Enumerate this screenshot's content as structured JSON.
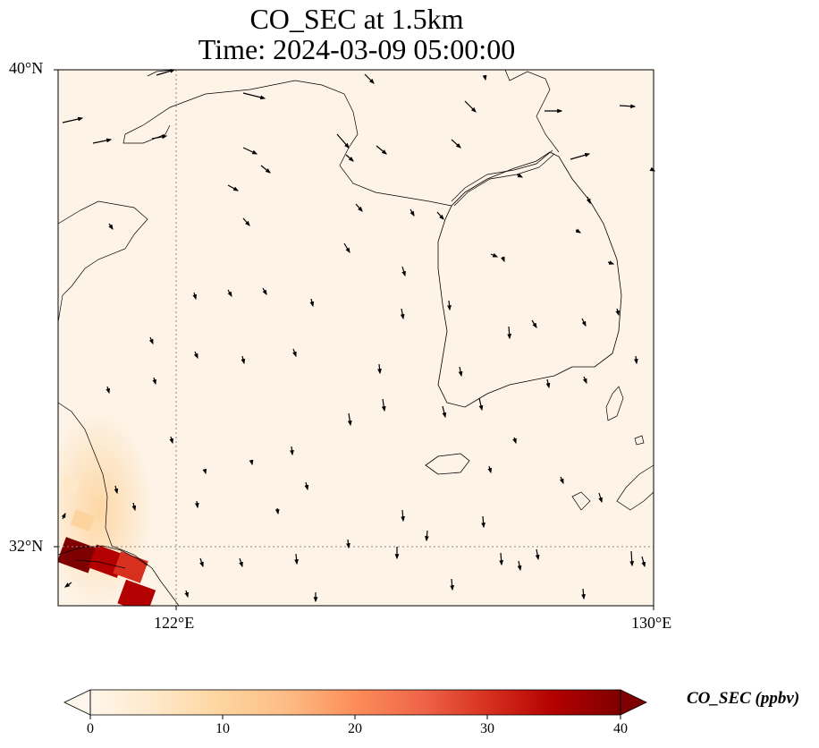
{
  "title": {
    "line1": "CO_SEC at 1.5km",
    "line2": "Time: 2024-03-09 05:00:00"
  },
  "axes": {
    "lat_labels": [
      "40°N",
      "32°N"
    ],
    "lon_labels": [
      "122°E",
      "130°E"
    ],
    "lon_range": [
      120,
      130
    ],
    "lat_range": [
      31,
      40
    ],
    "gridlines": "dotted grey at 122°E and 32°N"
  },
  "colorbar": {
    "label": "CO_SEC (ppbv)",
    "ticks": [
      "0",
      "10",
      "20",
      "30",
      "40"
    ],
    "range": [
      0,
      40
    ],
    "colormap": "OrRd",
    "extend": "both",
    "colors": [
      "#fff7ec",
      "#fee8c8",
      "#fdd49e",
      "#fdbb84",
      "#fc8d59",
      "#ef6548",
      "#d7301f",
      "#b30000",
      "#7f0000"
    ]
  },
  "chart_data": {
    "type": "heatmap",
    "title": "CO_SEC at 1.5km",
    "subtitle": "Time: 2024-03-09 05:00:00",
    "xlabel": "",
    "ylabel": "",
    "xlim": [
      120,
      130
    ],
    "ylim": [
      31,
      40
    ],
    "variable": "CO_SEC",
    "units": "ppbv",
    "hotspots": [
      {
        "lon": 120.3,
        "lat": 31.8,
        "value": 38
      },
      {
        "lon": 120.8,
        "lat": 31.7,
        "value": 33
      },
      {
        "lon": 121.2,
        "lat": 31.6,
        "value": 30
      },
      {
        "lon": 121.3,
        "lat": 31.1,
        "value": 35
      },
      {
        "lon": 120.4,
        "lat": 32.4,
        "value": 12
      },
      {
        "lon": 120.2,
        "lat": 33.0,
        "value": 4
      }
    ],
    "background_value": 1,
    "wind_vectors": "present (black arrows, mostly southward)"
  }
}
